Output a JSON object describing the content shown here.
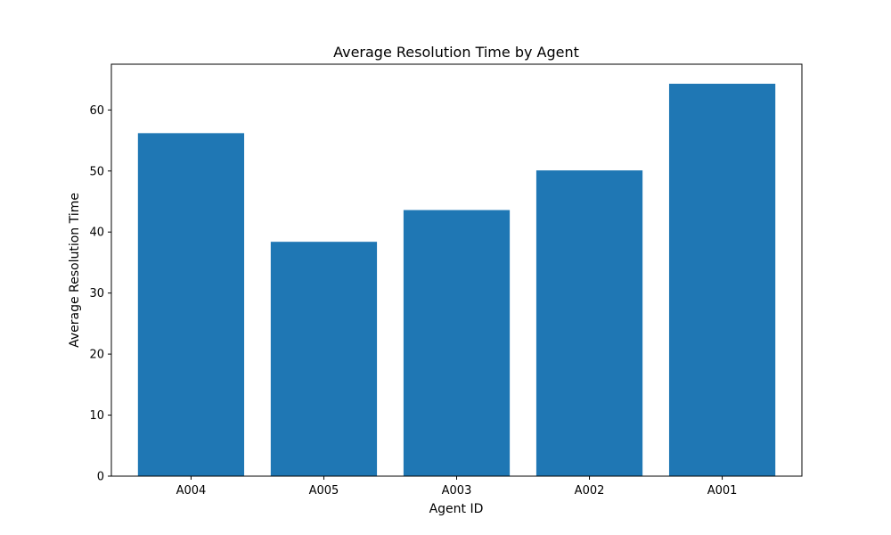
{
  "chart_data": {
    "type": "bar",
    "title": "Average Resolution Time by Agent",
    "xlabel": "Agent ID",
    "ylabel": "Average Resolution Time",
    "categories": [
      "A004",
      "A005",
      "A003",
      "A002",
      "A001"
    ],
    "values": [
      56.2,
      38.4,
      43.6,
      50.1,
      64.3
    ],
    "ylim": [
      0,
      67.5
    ],
    "yticks": [
      0,
      10,
      20,
      30,
      40,
      50,
      60
    ],
    "grid": false,
    "colors": {
      "bar": "#1f77b4",
      "axis": "#000000",
      "background": "#ffffff"
    }
  }
}
